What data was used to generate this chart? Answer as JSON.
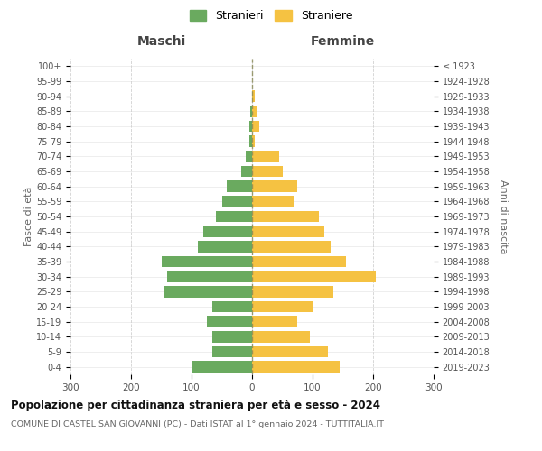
{
  "age_groups": [
    "0-4",
    "5-9",
    "10-14",
    "15-19",
    "20-24",
    "25-29",
    "30-34",
    "35-39",
    "40-44",
    "45-49",
    "50-54",
    "55-59",
    "60-64",
    "65-69",
    "70-74",
    "75-79",
    "80-84",
    "85-89",
    "90-94",
    "95-99",
    "100+"
  ],
  "birth_years": [
    "2019-2023",
    "2014-2018",
    "2009-2013",
    "2004-2008",
    "1999-2003",
    "1994-1998",
    "1989-1993",
    "1984-1988",
    "1979-1983",
    "1974-1978",
    "1969-1973",
    "1964-1968",
    "1959-1963",
    "1954-1958",
    "1949-1953",
    "1944-1948",
    "1939-1943",
    "1934-1938",
    "1929-1933",
    "1924-1928",
    "≤ 1923"
  ],
  "maschi": [
    100,
    65,
    65,
    75,
    65,
    145,
    140,
    150,
    90,
    80,
    60,
    50,
    42,
    18,
    10,
    5,
    4,
    3,
    0,
    0,
    0
  ],
  "femmine": [
    145,
    125,
    95,
    75,
    100,
    135,
    205,
    155,
    130,
    120,
    110,
    70,
    75,
    50,
    45,
    5,
    12,
    8,
    5,
    0,
    0
  ],
  "maschi_color": "#6aaa5f",
  "femmine_color": "#f5c242",
  "background_color": "#ffffff",
  "grid_color": "#cccccc",
  "title": "Popolazione per cittadinanza straniera per età e sesso - 2024",
  "subtitle": "COMUNE DI CASTEL SAN GIOVANNI (PC) - Dati ISTAT al 1° gennaio 2024 - TUTTITALIA.IT",
  "header_left": "Maschi",
  "header_right": "Femmine",
  "ylabel_left": "Fasce di età",
  "ylabel_right": "Anni di nascita",
  "legend_maschi": "Stranieri",
  "legend_femmine": "Straniere",
  "xlim": 300
}
